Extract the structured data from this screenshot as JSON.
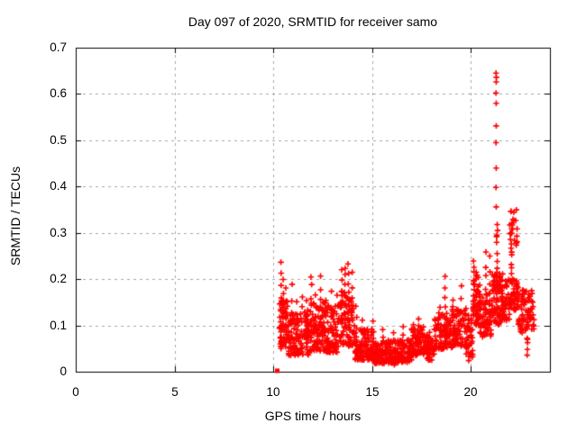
{
  "chart_data": {
    "type": "scatter",
    "title": "Day 097 of 2020, SRMTID for receiver samo",
    "xlabel": "GPS time / hours",
    "ylabel": "SRMTID / TECUs",
    "xlim": [
      0,
      24
    ],
    "ylim": [
      0,
      0.7
    ],
    "x_ticks": [
      0,
      5,
      10,
      15,
      20
    ],
    "x_tick_labels": [
      "0",
      "5",
      "10",
      "15",
      "20"
    ],
    "y_ticks": [
      0,
      0.1,
      0.2,
      0.3,
      0.4,
      0.5,
      0.6,
      0.7
    ],
    "y_tick_labels": [
      "0",
      "0.1",
      "0.2",
      "0.3",
      "0.4",
      "0.5",
      "0.6",
      "0.7"
    ],
    "grid": true,
    "legend": "none",
    "marker": "plus",
    "marker_color": "#ff0000",
    "grid_color": "#a6a6a6",
    "axis_color": "#000000",
    "background": "#ffffff",
    "data_time_range_hours": [
      10.2,
      23.2
    ],
    "square_marker_point": [
      10.2,
      0.002
    ],
    "outlier_points": [
      [
        21.27,
        0.645
      ],
      [
        21.29,
        0.636
      ],
      [
        21.28,
        0.626
      ],
      [
        21.27,
        0.602
      ],
      [
        21.28,
        0.58
      ],
      [
        21.28,
        0.531
      ],
      [
        21.27,
        0.495
      ],
      [
        21.28,
        0.44
      ],
      [
        21.27,
        0.398
      ],
      [
        21.28,
        0.356
      ],
      [
        21.33,
        0.318
      ],
      [
        21.35,
        0.305
      ],
      [
        21.3,
        0.292
      ],
      [
        22.02,
        0.346
      ]
    ],
    "cloud_segments": [
      [
        10.3,
        10.75,
        55,
        0.05,
        0.155,
        1.3
      ],
      [
        10.75,
        11.85,
        115,
        0.035,
        0.135,
        1.3
      ],
      [
        11.85,
        12.65,
        85,
        0.045,
        0.15,
        1.3
      ],
      [
        12.65,
        13.4,
        78,
        0.04,
        0.145,
        1.3
      ],
      [
        13.4,
        14.1,
        72,
        0.055,
        0.175,
        1.2
      ],
      [
        14.1,
        15.0,
        95,
        0.025,
        0.095,
        1.3
      ],
      [
        15.0,
        16.4,
        135,
        0.018,
        0.068,
        1.2
      ],
      [
        16.4,
        17.0,
        58,
        0.02,
        0.072,
        1.2
      ],
      [
        17.0,
        17.6,
        58,
        0.035,
        0.098,
        1.2
      ],
      [
        17.6,
        18.15,
        52,
        0.025,
        0.082,
        1.2
      ],
      [
        18.15,
        19.05,
        88,
        0.048,
        0.128,
        1.2
      ],
      [
        19.05,
        19.75,
        68,
        0.055,
        0.142,
        1.2
      ],
      [
        19.75,
        20.1,
        38,
        0.032,
        0.118,
        1.2
      ],
      [
        20.1,
        20.45,
        45,
        0.1,
        0.21,
        1.0
      ],
      [
        20.45,
        21.05,
        58,
        0.075,
        0.172,
        1.1
      ],
      [
        21.05,
        21.5,
        55,
        0.1,
        0.215,
        1.0
      ],
      [
        21.5,
        21.95,
        48,
        0.11,
        0.2,
        1.0
      ],
      [
        21.95,
        22.4,
        44,
        0.13,
        0.2,
        1.0
      ],
      [
        21.95,
        22.35,
        22,
        0.27,
        0.352,
        1.0
      ],
      [
        22.4,
        23.2,
        72,
        0.085,
        0.178,
        1.1
      ]
    ],
    "streaks": [
      [
        10.38,
        0.05,
        0.235,
        8
      ],
      [
        10.5,
        0.07,
        0.2,
        6
      ],
      [
        10.62,
        0.06,
        0.185,
        5
      ],
      [
        10.95,
        0.05,
        0.185,
        6
      ],
      [
        11.2,
        0.05,
        0.155,
        5
      ],
      [
        11.45,
        0.06,
        0.165,
        5
      ],
      [
        11.7,
        0.05,
        0.15,
        4
      ],
      [
        11.92,
        0.07,
        0.21,
        7
      ],
      [
        12.15,
        0.06,
        0.17,
        5
      ],
      [
        12.38,
        0.06,
        0.205,
        7
      ],
      [
        12.65,
        0.05,
        0.16,
        4
      ],
      [
        12.92,
        0.06,
        0.17,
        5
      ],
      [
        13.2,
        0.06,
        0.165,
        4
      ],
      [
        13.47,
        0.08,
        0.215,
        7
      ],
      [
        13.62,
        0.1,
        0.227,
        7
      ],
      [
        13.8,
        0.09,
        0.234,
        8
      ],
      [
        14.0,
        0.08,
        0.21,
        6
      ],
      [
        14.2,
        0.04,
        0.145,
        5
      ],
      [
        14.5,
        0.03,
        0.115,
        4
      ],
      [
        15.05,
        0.025,
        0.11,
        5
      ],
      [
        15.55,
        0.02,
        0.095,
        4
      ],
      [
        16.1,
        0.02,
        0.09,
        4
      ],
      [
        16.55,
        0.025,
        0.1,
        5
      ],
      [
        17.1,
        0.04,
        0.105,
        5
      ],
      [
        17.35,
        0.04,
        0.11,
        6
      ],
      [
        17.9,
        0.03,
        0.09,
        3
      ],
      [
        18.45,
        0.05,
        0.14,
        5
      ],
      [
        18.7,
        0.06,
        0.21,
        7
      ],
      [
        19.1,
        0.06,
        0.16,
        5
      ],
      [
        19.5,
        0.07,
        0.185,
        5
      ],
      [
        19.9,
        0.03,
        0.12,
        4
      ],
      [
        20.15,
        0.12,
        0.245,
        9
      ],
      [
        20.28,
        0.1,
        0.22,
        7
      ],
      [
        20.75,
        0.1,
        0.255,
        7
      ],
      [
        20.95,
        0.1,
        0.245,
        6
      ],
      [
        21.32,
        0.12,
        0.3,
        10
      ],
      [
        21.6,
        0.12,
        0.21,
        5
      ],
      [
        22.05,
        0.19,
        0.27,
        8
      ],
      [
        22.6,
        0.08,
        0.17,
        5
      ],
      [
        22.85,
        0.04,
        0.075,
        5
      ]
    ],
    "seed": 20
  }
}
